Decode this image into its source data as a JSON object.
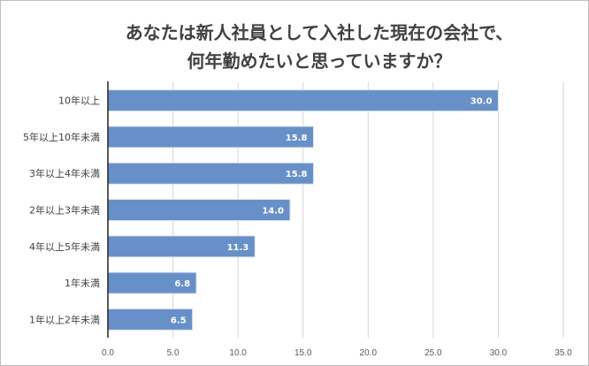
{
  "chart_data": {
    "type": "bar",
    "orientation": "horizontal",
    "title": [
      "あなたは新人社員として入社した現在の会社で、",
      "何年勤めたいと思っていますか？"
    ],
    "categories": [
      "10年以上",
      "5年以上10年未満",
      "3年以上4年未満",
      "2年以上3年未満",
      "4年以上5年未満",
      "1年未満",
      "1年以上2年未満"
    ],
    "values": [
      30.0,
      15.8,
      15.8,
      14.0,
      11.3,
      6.8,
      6.5
    ],
    "data_labels": [
      "30.0",
      "15.8",
      "15.8",
      "14.0",
      "11.3",
      "6.8",
      "6.5"
    ],
    "xticks": [
      "0.0",
      "5.0",
      "10.0",
      "15.0",
      "20.0",
      "25.0",
      "30.0",
      "35.0"
    ],
    "xlim": [
      0,
      35
    ],
    "xlabel": "",
    "ylabel": "",
    "grid": "vertical",
    "bar_color": "#6890c8"
  }
}
